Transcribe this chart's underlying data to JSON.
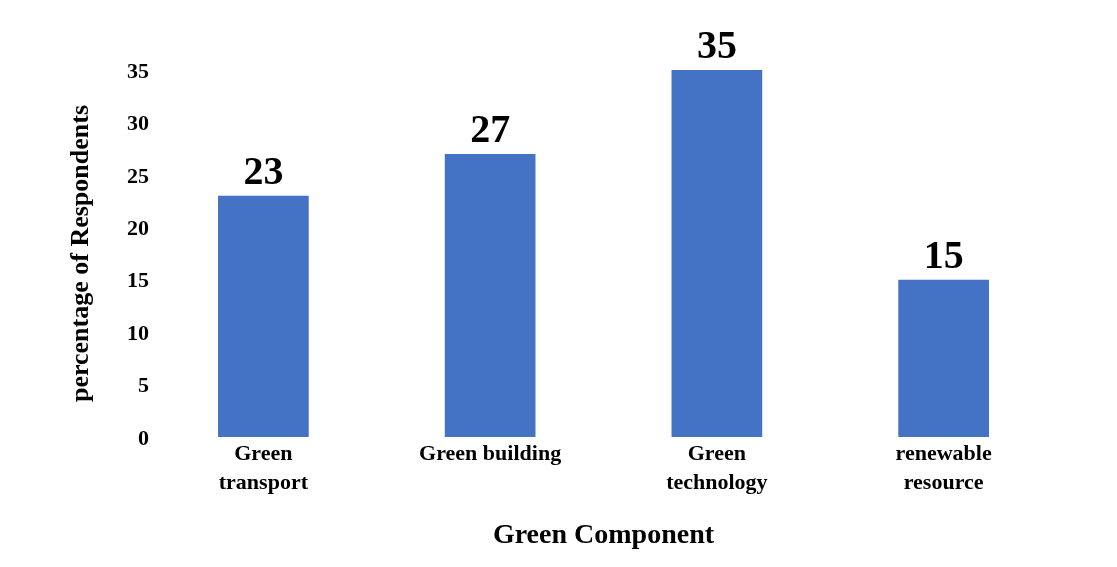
{
  "chart_data": {
    "type": "bar",
    "xlabel": "Green Component",
    "ylabel": "percentage of Respondents",
    "categories": [
      "Green\ntransport",
      "Green building",
      "Green\ntechnology",
      "renewable\nresource"
    ],
    "values": [
      23,
      27,
      35,
      15
    ],
    "color": "#4472c4",
    "ylim": [
      0,
      35
    ],
    "yticks": [
      0,
      5,
      10,
      15,
      20,
      25,
      30,
      35
    ],
    "grid": false,
    "data_labels": true
  }
}
